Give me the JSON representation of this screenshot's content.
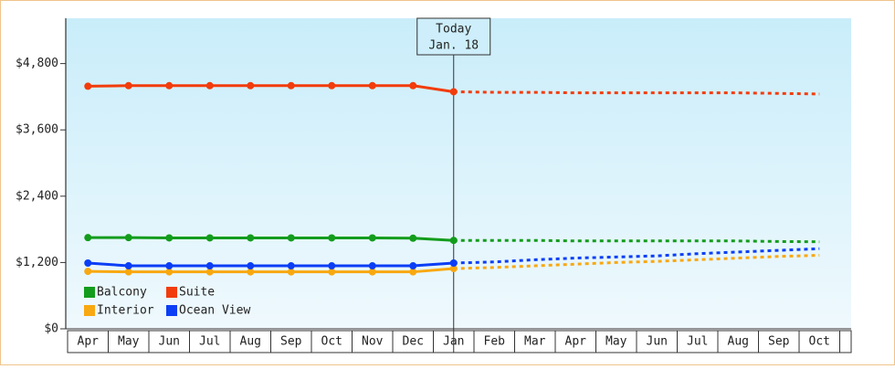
{
  "chart_data": {
    "type": "line",
    "categories": [
      "Apr",
      "May",
      "Jun",
      "Jul",
      "Aug",
      "Sep",
      "Oct",
      "Nov",
      "Dec",
      "Jan",
      "Feb",
      "Mar",
      "Apr",
      "May",
      "Jun",
      "Jul",
      "Aug",
      "Sep",
      "Oct"
    ],
    "series": [
      {
        "name": "Balcony",
        "color": "#139c1c",
        "values": [
          1650,
          1650,
          1645,
          1645,
          1645,
          1645,
          1645,
          1645,
          1640,
          1600,
          1600,
          1600,
          1590,
          1590,
          1590,
          1590,
          1590,
          1580,
          1575
        ]
      },
      {
        "name": "Suite",
        "color": "#f23c0c",
        "values": [
          4390,
          4400,
          4400,
          4400,
          4400,
          4400,
          4400,
          4400,
          4400,
          4290,
          4280,
          4280,
          4270,
          4270,
          4270,
          4270,
          4270,
          4260,
          4250
        ]
      },
      {
        "name": "Interior",
        "color": "#f8a811",
        "values": [
          1040,
          1030,
          1030,
          1030,
          1030,
          1030,
          1030,
          1030,
          1030,
          1090,
          1110,
          1140,
          1170,
          1200,
          1220,
          1250,
          1280,
          1310,
          1330
        ]
      },
      {
        "name": "Ocean View",
        "color": "#0b3ef5",
        "values": [
          1190,
          1140,
          1140,
          1140,
          1140,
          1140,
          1140,
          1140,
          1140,
          1190,
          1210,
          1250,
          1280,
          1300,
          1320,
          1360,
          1390,
          1420,
          1450
        ]
      }
    ],
    "ylim": [
      0,
      5620
    ],
    "yticks": [
      {
        "value": 0,
        "label": "$0"
      },
      {
        "value": 1200,
        "label": "$1,200"
      },
      {
        "value": 2400,
        "label": "$2,400"
      },
      {
        "value": 3600,
        "label": "$3,600"
      },
      {
        "value": 4800,
        "label": "$4,800"
      }
    ],
    "today": {
      "label": [
        "Today",
        "Jan. 18"
      ],
      "category": "Jan"
    },
    "legend": "lower-left"
  }
}
